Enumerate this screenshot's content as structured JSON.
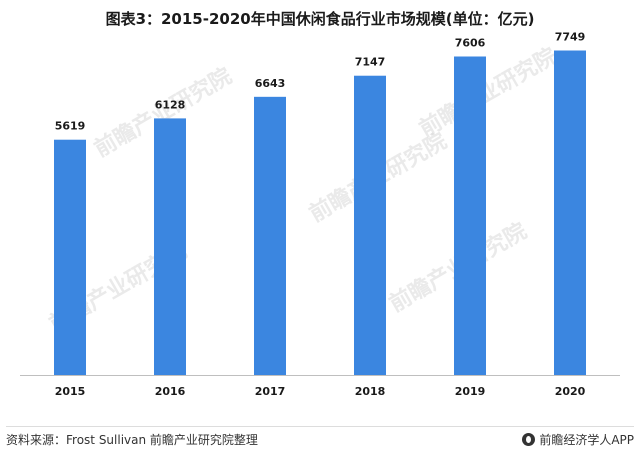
{
  "title": "图表3：2015-2020年中国休闲食品行业市场规模(单位：亿元)",
  "footer": {
    "source": "资料来源：Frost Sullivan 前瞻产业研究院整理",
    "credit": "前瞻经济学人APP"
  },
  "watermark": {
    "text": "前瞻产业研究院"
  },
  "colors": {
    "bar": "#3b86e0",
    "axis": "#bfbfbf",
    "text": "#1a1a1a"
  },
  "chart_data": {
    "type": "bar",
    "title": "图表3：2015-2020年中国休闲食品行业市场规模(单位：亿元)",
    "xlabel": "",
    "ylabel": "",
    "categories": [
      "2015",
      "2016",
      "2017",
      "2018",
      "2019",
      "2020"
    ],
    "values": [
      5619,
      6128,
      6643,
      7147,
      7606,
      7749
    ],
    "ylim": [
      0,
      8000
    ],
    "grid": false,
    "data_labels": true
  }
}
